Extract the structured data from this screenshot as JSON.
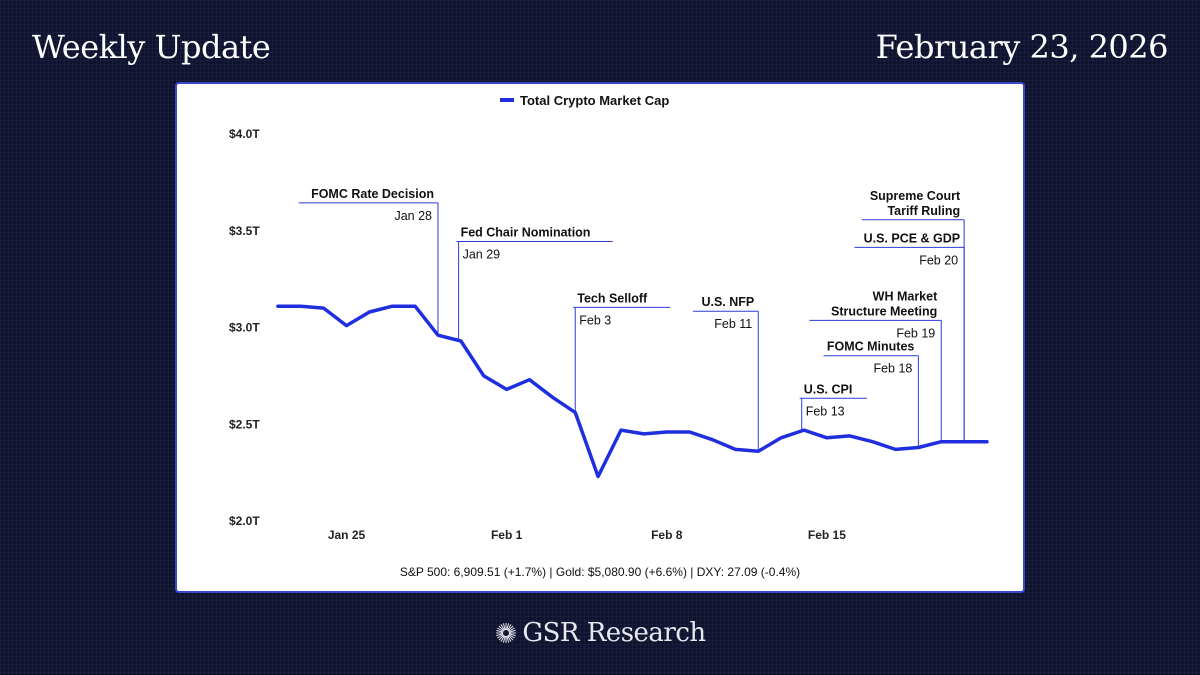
{
  "header": {
    "title": "Weekly Update",
    "date": "February 23, 2026"
  },
  "footer": {
    "stats": "S&P 500: 6,909.51 (+1.7%) | Gold: $5,080.90 (+6.6%) | DXY: 27.09 (-0.4%)",
    "brand": "GSR Research",
    "logo_icon": "sunburst-icon"
  },
  "chart_data": {
    "type": "line",
    "title": "",
    "xlabel": "",
    "ylabel": "",
    "legend": "top-center",
    "grid": false,
    "ylim": [
      2.0,
      4.0
    ],
    "yticks": [
      {
        "value": 4.0,
        "label": "$4.0T"
      },
      {
        "value": 3.5,
        "label": "$3.5T"
      },
      {
        "value": 3.0,
        "label": "$3.0T"
      },
      {
        "value": 2.5,
        "label": "$2.5T"
      },
      {
        "value": 2.0,
        "label": "$2.0T"
      }
    ],
    "xticks": [
      {
        "day": 25,
        "label": "Jan 25"
      },
      {
        "day": 32,
        "label": "Feb 1"
      },
      {
        "day": 39,
        "label": "Feb 8"
      },
      {
        "day": 46,
        "label": "Feb 15"
      }
    ],
    "xlim": [
      21,
      53
    ],
    "line_color": "#1f2fe0",
    "series": [
      {
        "name": "Total Crypto Market Cap",
        "x": [
          22,
          23,
          24,
          25,
          26,
          27,
          28,
          29,
          30,
          31,
          32,
          33,
          34,
          35,
          36,
          37,
          38,
          39,
          40,
          41,
          42,
          43,
          44,
          45,
          46,
          47,
          48,
          49,
          50,
          51,
          52,
          53
        ],
        "values": [
          3.11,
          3.11,
          3.1,
          3.01,
          3.08,
          3.11,
          3.11,
          2.96,
          2.93,
          2.75,
          2.68,
          2.73,
          2.64,
          2.56,
          2.23,
          2.47,
          2.45,
          2.46,
          2.46,
          2.42,
          2.37,
          2.36,
          2.43,
          2.47,
          2.43,
          2.44,
          2.41,
          2.37,
          2.38,
          2.41,
          2.41,
          2.41
        ]
      }
    ],
    "annotations": [
      {
        "label": "FOMC Rate Decision",
        "date": "Jan 28",
        "day": 29.0,
        "label_y": 3.67,
        "date_y": 3.57,
        "align": "right"
      },
      {
        "label": "Fed Chair Nomination",
        "date": "Jan 29",
        "day": 29.9,
        "label_y": 3.47,
        "date_y": 3.37,
        "align": "left"
      },
      {
        "label": "Tech Selloff",
        "date": "Feb 3",
        "day": 35.0,
        "label_y": 3.13,
        "date_y": 3.03,
        "align": "left"
      },
      {
        "label": "U.S. NFP",
        "date": "Feb 11",
        "day": 43.0,
        "label_y": 3.11,
        "date_y": 3.01,
        "align": "right"
      },
      {
        "label": "U.S. CPI",
        "date": "Feb 13",
        "day": 44.9,
        "label_y": 2.66,
        "date_y": 2.56,
        "align": "left"
      },
      {
        "label": "FOMC Minutes",
        "date": "Feb 18",
        "day": 50.0,
        "label_y": 2.88,
        "date_y": 2.78,
        "align": "right"
      },
      {
        "label_lines": [
          "WH Market",
          "Structure Meeting"
        ],
        "date": "Feb 19",
        "day": 51.0,
        "label_y": 3.14,
        "date_y": 3.04,
        "align": "right"
      },
      {
        "label_lines": [
          "U.S. PCE & GDP"
        ],
        "date": "Feb 20",
        "day": 52.0,
        "label_y": 3.44,
        "date_y": 3.34,
        "align": "right"
      },
      {
        "label_lines": [
          "Supreme Court",
          "Tariff Ruling"
        ],
        "date": "",
        "day": 52.0,
        "label_y": 3.66,
        "date_y": 0,
        "align": "right",
        "no_date": true
      }
    ]
  }
}
